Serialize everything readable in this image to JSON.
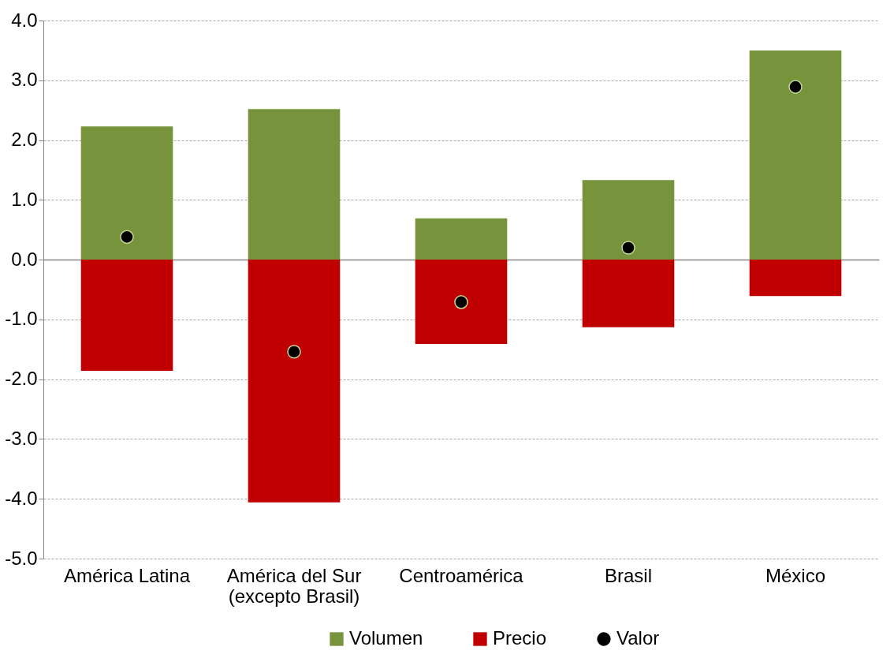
{
  "chart_data": {
    "type": "bar",
    "stacked": true,
    "categories": [
      "América Latina",
      "América del Sur\n(excepto Brasil)",
      "Centroamérica",
      "Brasil",
      "México"
    ],
    "series": [
      {
        "name": "Volumen",
        "color": "#77933c",
        "values": [
          2.23,
          2.52,
          0.69,
          1.33,
          3.5
        ]
      },
      {
        "name": "Precio",
        "color": "#c00000",
        "values": [
          -1.86,
          -4.06,
          -1.41,
          -1.13,
          -0.61
        ]
      },
      {
        "name": "Valor",
        "type": "scatter",
        "color": "#000000",
        "values": [
          0.38,
          -1.54,
          -0.71,
          0.2,
          2.89
        ]
      }
    ],
    "ylim": [
      -5,
      4
    ],
    "yticks": [
      {
        "value": -5,
        "label": "-5.0"
      },
      {
        "value": -4,
        "label": "-4.0"
      },
      {
        "value": -3,
        "label": "-3.0"
      },
      {
        "value": -2,
        "label": "-2.0"
      },
      {
        "value": -1,
        "label": "-1.0"
      },
      {
        "value": 0,
        "label": "0.0"
      },
      {
        "value": 1,
        "label": "1.0"
      },
      {
        "value": 2,
        "label": "2.0"
      },
      {
        "value": 3,
        "label": "3.0"
      },
      {
        "value": 4,
        "label": "4.0"
      }
    ],
    "grid": "y",
    "legend": "bottom",
    "marker": "circle"
  }
}
